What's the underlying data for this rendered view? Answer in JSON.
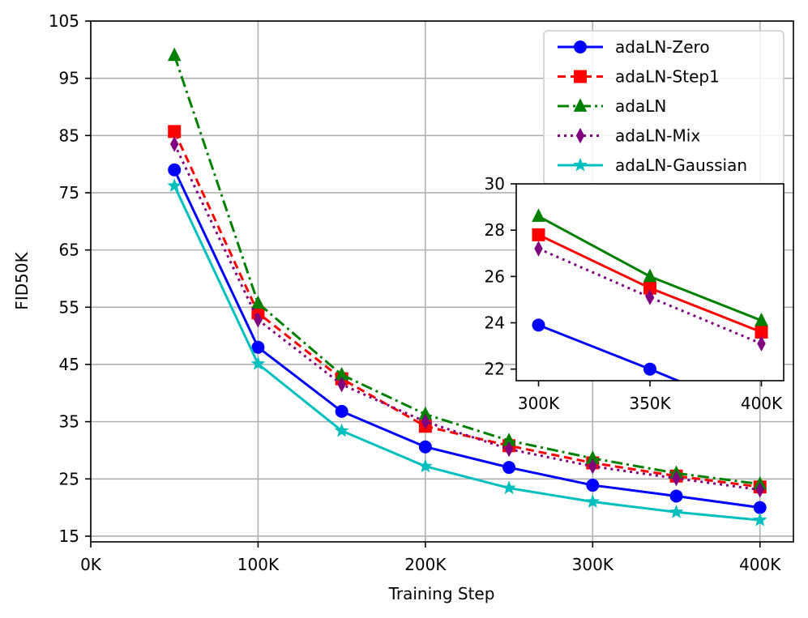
{
  "chart_data": {
    "type": "line",
    "xlabel": "Training Step",
    "ylabel": "FID50K",
    "xlim": [
      0,
      420000
    ],
    "ylim": [
      14,
      105
    ],
    "grid": true,
    "legend_placement": "top-right",
    "x_ticks": [
      {
        "value": 0,
        "label": "0K"
      },
      {
        "value": 100000,
        "label": "100K"
      },
      {
        "value": 200000,
        "label": "200K"
      },
      {
        "value": 300000,
        "label": "300K"
      },
      {
        "value": 400000,
        "label": "400K"
      }
    ],
    "y_ticks": [
      {
        "value": 15,
        "label": "15"
      },
      {
        "value": 25,
        "label": "25"
      },
      {
        "value": 35,
        "label": "35"
      },
      {
        "value": 45,
        "label": "45"
      },
      {
        "value": 55,
        "label": "55"
      },
      {
        "value": 65,
        "label": "65"
      },
      {
        "value": 75,
        "label": "75"
      },
      {
        "value": 85,
        "label": "85"
      },
      {
        "value": 95,
        "label": "95"
      },
      {
        "value": 105,
        "label": "105"
      }
    ],
    "x": [
      50000,
      100000,
      150000,
      200000,
      250000,
      300000,
      350000,
      400000
    ],
    "series": [
      {
        "name": "adaLN-Zero",
        "color": "#0000ff",
        "marker": "circle",
        "dash": "",
        "values": [
          79.0,
          48.0,
          36.8,
          30.6,
          27.0,
          23.9,
          22.0,
          20.0
        ]
      },
      {
        "name": "adaLN-Step1",
        "color": "#ff0000",
        "marker": "square",
        "dash": "10,6",
        "values": [
          85.7,
          54.0,
          42.5,
          34.2,
          30.8,
          27.8,
          25.5,
          23.6
        ]
      },
      {
        "name": "adaLN",
        "color": "#008000",
        "marker": "triangle",
        "dash": "14,5,3,5",
        "values": [
          99.0,
          55.7,
          43.2,
          36.3,
          31.7,
          28.6,
          26.0,
          24.1
        ]
      },
      {
        "name": "adaLN-Mix",
        "color": "#800080",
        "marker": "diamond",
        "dash": "3,5",
        "values": [
          83.5,
          52.8,
          41.5,
          35.0,
          30.2,
          27.2,
          25.1,
          23.1
        ]
      },
      {
        "name": "adaLN-Gaussian",
        "color": "#00bfbf",
        "marker": "star",
        "dash": "",
        "values": [
          76.2,
          45.1,
          33.4,
          27.2,
          23.4,
          21.0,
          19.2,
          17.8
        ]
      }
    ],
    "inset": {
      "xlim": [
        290000,
        410000
      ],
      "ylim": [
        21.5,
        30
      ],
      "x_ticks": [
        {
          "value": 300000,
          "label": "300K"
        },
        {
          "value": 350000,
          "label": "350K"
        },
        {
          "value": 400000,
          "label": "400K"
        }
      ],
      "y_ticks": [
        {
          "value": 22,
          "label": "22"
        },
        {
          "value": 24,
          "label": "24"
        },
        {
          "value": 26,
          "label": "26"
        },
        {
          "value": 28,
          "label": "28"
        },
        {
          "value": 30,
          "label": "30"
        }
      ],
      "x": [
        300000,
        350000,
        400000
      ],
      "series": [
        {
          "name": "adaLN-Zero",
          "color": "#0000ff",
          "marker": "circle",
          "dash": "",
          "values": [
            23.9,
            22.0,
            20.0
          ]
        },
        {
          "name": "adaLN-Step1",
          "color": "#ff0000",
          "marker": "square",
          "dash": "",
          "values": [
            27.8,
            25.5,
            23.6
          ]
        },
        {
          "name": "adaLN",
          "color": "#008000",
          "marker": "triangle",
          "dash": "",
          "values": [
            28.6,
            26.0,
            24.1
          ]
        },
        {
          "name": "adaLN-Mix",
          "color": "#800080",
          "marker": "diamond",
          "dash": "3,5",
          "values": [
            27.2,
            25.1,
            23.1
          ]
        }
      ]
    }
  }
}
